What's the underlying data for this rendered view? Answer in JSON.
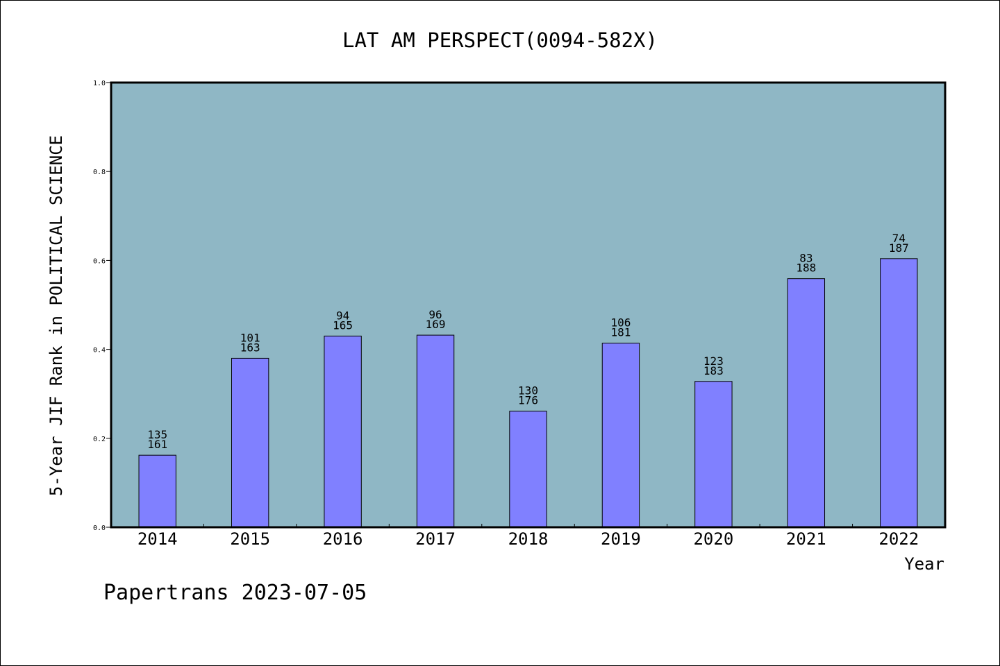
{
  "chart_data": {
    "type": "bar",
    "title": "LAT AM PERSPECT(0094-582X)",
    "xlabel": "Year",
    "ylabel": "5-Year JIF Rank in POLITICAL SCIENCE",
    "footer": "Papertrans 2023-07-05",
    "ylim": [
      0,
      1.0
    ],
    "yticks": [
      0.0,
      0.2,
      0.4,
      0.6,
      0.8,
      1.0
    ],
    "ytick_labels": [
      "0.0",
      "0.2",
      "0.4",
      "0.6",
      "0.8",
      "1.0"
    ],
    "categories": [
      "2014",
      "2015",
      "2016",
      "2017",
      "2018",
      "2019",
      "2020",
      "2021",
      "2022"
    ],
    "values": [
      0.162,
      0.38,
      0.43,
      0.432,
      0.261,
      0.414,
      0.328,
      0.559,
      0.604
    ],
    "rank": [
      "135",
      "101",
      "94",
      "96",
      "130",
      "106",
      "123",
      "83",
      "74"
    ],
    "total": [
      "161",
      "163",
      "165",
      "169",
      "176",
      "181",
      "183",
      "188",
      "187"
    ],
    "grid": false,
    "colors": {
      "plot_background": "#8fb7c5",
      "bar_fill": "#8080ff",
      "bar_stroke": "#000000",
      "axis": "#000000",
      "text": "#000000"
    }
  }
}
